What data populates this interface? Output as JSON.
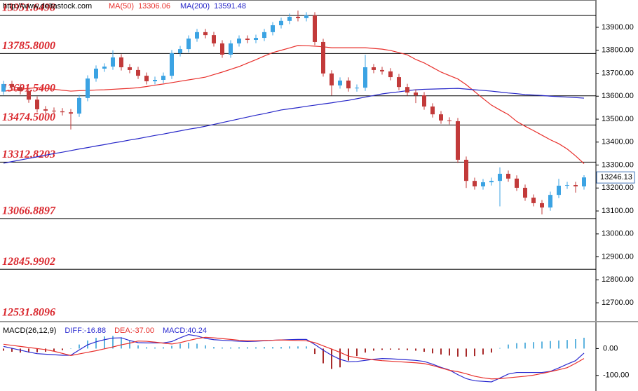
{
  "chart_data": [
    {
      "type": "candlestick",
      "url": "http://www.deltastock.com",
      "open": [
        13620,
        13653,
        13640,
        13622,
        13585,
        13543,
        13537,
        13534,
        13530,
        13524,
        13592,
        13677,
        13720,
        13729,
        13769,
        13726,
        13714,
        13689,
        13665,
        13671,
        13689,
        13787,
        13805,
        13851,
        13879,
        13866,
        13830,
        13781,
        13830,
        13851,
        13845,
        13854,
        13879,
        13909,
        13928,
        13946,
        13940,
        13952,
        13836,
        13699,
        13647,
        13668,
        13634,
        13637,
        13726,
        13714,
        13708,
        13683,
        13640,
        13616,
        13604,
        13555,
        13521,
        13494,
        13491,
        13323,
        13231,
        13207,
        13225,
        13231,
        13262,
        13241,
        13201,
        13158,
        13134,
        13115,
        13170,
        13210,
        13213,
        13207
      ],
      "high": [
        13667,
        13667,
        13654,
        13636,
        13599,
        13557,
        13551,
        13548,
        13544,
        13606,
        13691,
        13734,
        13743,
        13800,
        13783,
        13740,
        13728,
        13703,
        13685,
        13703,
        13801,
        13819,
        13865,
        13893,
        13893,
        13880,
        13844,
        13844,
        13865,
        13865,
        13868,
        13893,
        13923,
        13942,
        13960,
        13973,
        13966,
        13966,
        13850,
        13713,
        13682,
        13682,
        13651,
        13780,
        13740,
        13728,
        13722,
        13697,
        13654,
        13630,
        13618,
        13569,
        13535,
        13508,
        13505,
        13337,
        13245,
        13239,
        13245,
        13290,
        13276,
        13255,
        13215,
        13172,
        13148,
        13184,
        13240,
        13227,
        13227,
        13256
      ],
      "low": [
        13606,
        13626,
        13608,
        13571,
        13529,
        13523,
        13520,
        13516,
        13455,
        13510,
        13578,
        13663,
        13706,
        13715,
        13712,
        13700,
        13675,
        13651,
        13651,
        13657,
        13675,
        13773,
        13791,
        13837,
        13852,
        13816,
        13767,
        13767,
        13816,
        13831,
        13831,
        13840,
        13865,
        13895,
        13914,
        13926,
        13926,
        13822,
        13685,
        13603,
        13633,
        13620,
        13620,
        13623,
        13700,
        13694,
        13669,
        13626,
        13602,
        13570,
        13541,
        13507,
        13480,
        13477,
        13309,
        13200,
        13193,
        13193,
        13211,
        13120,
        13227,
        13187,
        13144,
        13120,
        13085,
        13101,
        13156,
        13196,
        13180,
        13193
      ],
      "close": [
        13653,
        13640,
        13622,
        13585,
        13543,
        13537,
        13534,
        13530,
        13524,
        13592,
        13677,
        13720,
        13729,
        13769,
        13726,
        13714,
        13689,
        13665,
        13671,
        13689,
        13787,
        13805,
        13851,
        13879,
        13866,
        13830,
        13781,
        13830,
        13851,
        13845,
        13854,
        13879,
        13909,
        13928,
        13946,
        13940,
        13952,
        13836,
        13699,
        13647,
        13668,
        13634,
        13637,
        13726,
        13714,
        13708,
        13683,
        13640,
        13616,
        13604,
        13555,
        13521,
        13494,
        13491,
        13323,
        13231,
        13207,
        13225,
        13231,
        13262,
        13241,
        13201,
        13158,
        13134,
        13115,
        13170,
        13210,
        13213,
        13207,
        13246.13
      ],
      "up_color": "#3ba3e3",
      "down_color": "#c23a3a",
      "series": [
        {
          "name": "MA(50)",
          "color": "#e8302c",
          "values": [
            13622,
            13626,
            13630,
            13634,
            13637,
            13634,
            13630,
            13626,
            13622,
            13624,
            13625,
            13627,
            13628,
            13630,
            13632,
            13634,
            13637,
            13642,
            13648,
            13653,
            13659,
            13665,
            13671,
            13677,
            13683,
            13694,
            13705,
            13717,
            13729,
            13744,
            13759,
            13775,
            13790,
            13800,
            13810,
            13821,
            13820,
            13818,
            13815,
            13811,
            13811,
            13811,
            13811,
            13811,
            13808,
            13805,
            13799,
            13790,
            13780,
            13760,
            13745,
            13725,
            13705,
            13690,
            13675,
            13650,
            13620,
            13590,
            13561,
            13540,
            13520,
            13490,
            13469,
            13450,
            13430,
            13410,
            13393,
            13370,
            13340,
            13306.06
          ]
        },
        {
          "name": "MA(200)",
          "color": "#2626c8",
          "values": [
            13308,
            13315,
            13322,
            13329,
            13336,
            13343,
            13350,
            13356,
            13363,
            13370,
            13376,
            13383,
            13389,
            13396,
            13402,
            13409,
            13415,
            13422,
            13429,
            13435,
            13442,
            13449,
            13456,
            13462,
            13469,
            13477,
            13485,
            13493,
            13501,
            13509,
            13517,
            13524,
            13532,
            13540,
            13545,
            13550,
            13556,
            13561,
            13566,
            13571,
            13577,
            13582,
            13589,
            13596,
            13603,
            13610,
            13615,
            13619,
            13624,
            13628,
            13630,
            13631,
            13632,
            13633,
            13634,
            13631,
            13628,
            13625,
            13622,
            13618,
            13614,
            13611,
            13607,
            13605,
            13603,
            13600,
            13598,
            13596,
            13594,
            13591.48
          ]
        }
      ],
      "level_color": "#000000",
      "level_label_color": "#d9262c",
      "levels": [
        {
          "value": 13951.6498,
          "label": "13951.6498"
        },
        {
          "value": 13785.8,
          "label": "13785.8000"
        },
        {
          "value": 13601.54,
          "label": "13601.5400"
        },
        {
          "value": 13474.5,
          "label": "13474.5000"
        },
        {
          "value": 13312.8203,
          "label": "13312.8203"
        },
        {
          "value": 13066.8897,
          "label": "13066.8897"
        },
        {
          "value": 12845.9902,
          "label": "12845.9902"
        },
        {
          "value": 12531.8096,
          "label": "12531.8096"
        }
      ],
      "ylim": [
        12624,
        14019
      ],
      "yticks": [
        {
          "value": 12700,
          "label": "12700.00"
        },
        {
          "value": 12800,
          "label": "12800.00"
        },
        {
          "value": 12900,
          "label": "12900.00"
        },
        {
          "value": 13000,
          "label": "13000.00"
        },
        {
          "value": 13100,
          "label": "13100.00"
        },
        {
          "value": 13200,
          "label": "13200.00"
        },
        {
          "value": 13300,
          "label": "13300.00"
        },
        {
          "value": 13400,
          "label": "13400.00"
        },
        {
          "value": 13500,
          "label": "13500.00"
        },
        {
          "value": 13600,
          "label": "13600.00"
        },
        {
          "value": 13700,
          "label": "13700.00"
        },
        {
          "value": 13800,
          "label": "13800.00"
        },
        {
          "value": 13900,
          "label": "13900.00"
        }
      ]
    },
    {
      "type": "macd",
      "title": "MACD(26,12,9)",
      "series": [
        {
          "name": "DIFF:-16.88",
          "type": "line",
          "color": "#2a2ad0",
          "values": [
            8,
            1,
            -6,
            -13,
            -19,
            -21,
            -23,
            -25,
            -25,
            -5,
            14,
            25,
            33,
            39,
            40,
            30,
            22,
            21,
            21,
            21,
            26,
            40,
            52,
            47,
            38,
            33,
            31,
            29,
            27,
            26,
            27,
            29,
            31,
            32,
            33,
            34,
            34,
            15,
            -6,
            -25,
            -40,
            -49,
            -48,
            -44,
            -40,
            -37,
            -38,
            -40,
            -42,
            -44,
            -48,
            -58,
            -70,
            -80,
            -97,
            -112,
            -120,
            -122,
            -124,
            -110,
            -95,
            -89,
            -89,
            -89,
            -89,
            -85,
            -72,
            -58,
            -45,
            -16.88
          ]
        },
        {
          "name": "DEA:-37.00",
          "type": "line",
          "color": "#e8302c",
          "values": [
            16,
            12,
            8,
            4,
            0,
            -4,
            -10,
            -18,
            -26,
            -20,
            -14,
            -8,
            -1,
            6,
            14,
            20,
            28,
            27,
            24,
            20,
            17,
            22,
            30,
            37,
            42,
            40,
            37,
            34,
            31,
            29,
            29,
            30,
            31,
            32,
            31,
            30,
            29,
            22,
            10,
            -2,
            -14,
            -28,
            -34,
            -38,
            -42,
            -45,
            -47,
            -49,
            -51,
            -53,
            -56,
            -63,
            -72,
            -81,
            -86,
            -94,
            -103,
            -109,
            -113,
            -112,
            -109,
            -106,
            -103,
            -99,
            -93,
            -86,
            -79,
            -71,
            -55,
            -37
          ]
        },
        {
          "name": "MACD:40.24",
          "type": "bar",
          "color": "#2a2ad0",
          "up_color": "#5fb4df",
          "down_color": "#a82a2a",
          "values": [
            -8,
            -12,
            -15,
            -15,
            -14,
            -12,
            -10,
            -6,
            0,
            15,
            30,
            40,
            45,
            47,
            42,
            30,
            12,
            5,
            4,
            5,
            10,
            18,
            22,
            18,
            12,
            6,
            4,
            4,
            5,
            5,
            5,
            6,
            6,
            6,
            8,
            8,
            8,
            -20,
            -55,
            -76,
            -70,
            -45,
            -28,
            -15,
            -8,
            -5,
            -4,
            -4,
            -6,
            -8,
            -12,
            -18,
            -22,
            -26,
            -30,
            -30,
            -28,
            -22,
            -15,
            2,
            15,
            20,
            22,
            24,
            26,
            28,
            30,
            32,
            35,
            40.24
          ]
        }
      ],
      "ylim": [
        -158,
        95
      ],
      "yticks": [
        {
          "value": 0,
          "label": "0.00"
        },
        {
          "value": -100,
          "label": "-100.00"
        }
      ]
    }
  ]
}
